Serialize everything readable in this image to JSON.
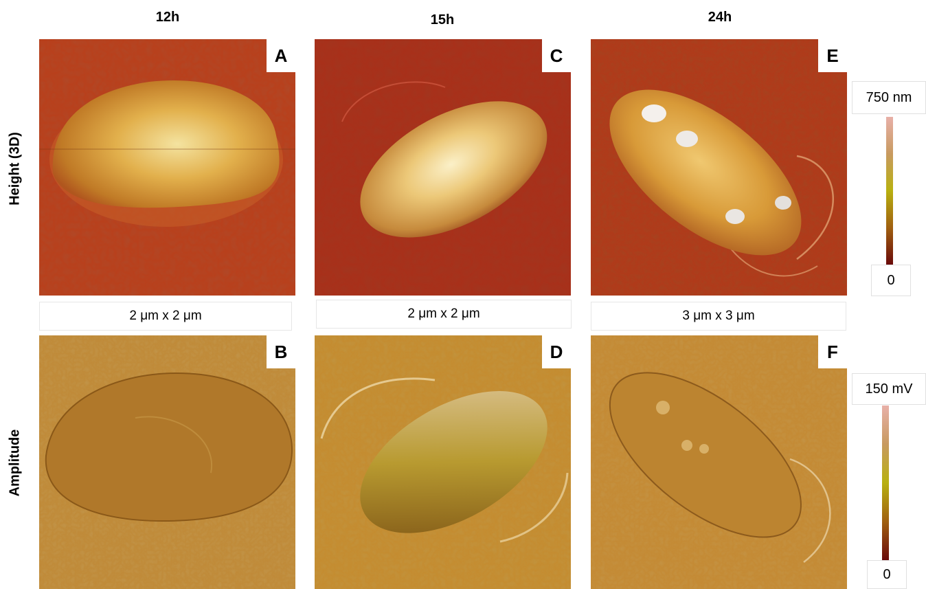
{
  "columns": [
    "12h",
    "15h",
    "24h"
  ],
  "rows": [
    "Height (3D)",
    "Amplitude"
  ],
  "panels": {
    "a": "A",
    "b": "B",
    "c": "C",
    "d": "D",
    "e": "E",
    "f": "F"
  },
  "scan_sizes": [
    "2 μm x 2 μm",
    "2 μm x 2 μm",
    "3 μm x 3 μm"
  ],
  "height_scale": {
    "max": "750 nm",
    "min": "0"
  },
  "amplitude_scale": {
    "max": "150 mV",
    "min": "0"
  },
  "colors": {
    "height_bg": "#a8341a",
    "height_cell": "#e8b04a",
    "amplitude_bg": "#c0862a",
    "amplitude_cell": "#b88a2c",
    "colorbar_top": "#e8b0a8",
    "colorbar_mid": "#b8b010",
    "colorbar_bottom": "#6a0a0a"
  }
}
